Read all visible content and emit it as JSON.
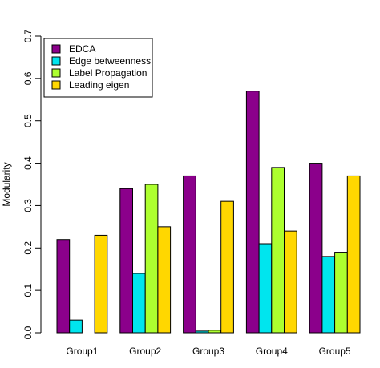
{
  "chart_data": {
    "type": "bar",
    "categories": [
      "Group1",
      "Group2",
      "Group3",
      "Group4",
      "Group5"
    ],
    "series": [
      {
        "name": "EDCA",
        "values": [
          0.22,
          0.34,
          0.37,
          0.57,
          0.4
        ],
        "color": "#8B008B"
      },
      {
        "name": "Edge betweenness",
        "values": [
          0.03,
          0.14,
          0.004,
          0.21,
          0.18
        ],
        "color": "#00E5EE"
      },
      {
        "name": "Label Propagation",
        "values": [
          0.0,
          0.35,
          0.006,
          0.39,
          0.19
        ],
        "color": "#ADFF2F"
      },
      {
        "name": "Leading eigen",
        "values": [
          0.23,
          0.25,
          0.31,
          0.24,
          0.37
        ],
        "color": "#FFD700"
      }
    ],
    "title": "",
    "xlabel": "",
    "ylabel": "Modularity",
    "ylim": [
      0,
      0.7
    ],
    "yticks": [
      "0.0",
      "0.1",
      "0.2",
      "0.3",
      "0.4",
      "0.5",
      "0.6",
      "0.7"
    ],
    "grid": false,
    "legend_position": "top-left"
  }
}
